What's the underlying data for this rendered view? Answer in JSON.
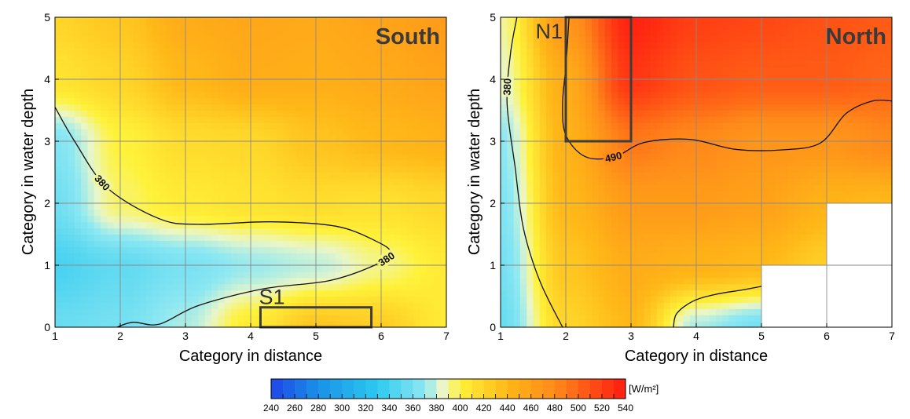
{
  "chart_data": [
    {
      "type": "heatmap",
      "region_label": "South",
      "xlabel": "Category in distance",
      "ylabel": "Category in water depth",
      "xlim": [
        1,
        7
      ],
      "ylim": [
        0,
        5
      ],
      "xticks": [
        1,
        2,
        3,
        4,
        5,
        6,
        7
      ],
      "yticks": [
        0,
        1,
        2,
        3,
        4,
        5
      ],
      "grid": true,
      "field": {
        "x": [
          1,
          2,
          3,
          4,
          5,
          6,
          7
        ],
        "y": [
          0,
          1,
          2,
          3,
          4,
          5
        ],
        "values": [
          [
            355,
            360,
            375,
            405,
            430,
            425,
            405
          ],
          [
            342,
            352,
            362,
            372,
            378,
            392,
            405
          ],
          [
            358,
            395,
            405,
            410,
            415,
            412,
            418
          ],
          [
            365,
            400,
            415,
            418,
            432,
            440,
            445
          ],
          [
            410,
            420,
            440,
            450,
            448,
            452,
            458
          ],
          [
            420,
            430,
            450,
            455,
            452,
            458,
            465
          ]
        ],
        "unit": "W/m²"
      },
      "contours": [
        {
          "label": "380",
          "points": [
            [
              1.0,
              3.55
            ],
            [
              1.3,
              3.0
            ],
            [
              1.8,
              2.25
            ],
            [
              2.6,
              1.75
            ],
            [
              3.2,
              1.66
            ],
            [
              4.3,
              1.7
            ],
            [
              5.3,
              1.63
            ],
            [
              5.9,
              1.4
            ],
            [
              6.15,
              1.2
            ],
            [
              5.9,
              1.0
            ],
            [
              5.2,
              0.75
            ],
            [
              4.2,
              0.62
            ],
            [
              3.2,
              0.35
            ],
            [
              2.6,
              0.05
            ],
            [
              2.2,
              0.08
            ],
            [
              1.95,
              0.0
            ]
          ]
        }
      ],
      "boxes": [
        {
          "label": "S1",
          "x0": 4.15,
          "x1": 5.85,
          "y0": 0.0,
          "y1": 0.32
        }
      ],
      "masked_cells": []
    },
    {
      "type": "heatmap",
      "region_label": "North",
      "xlabel": "Category in distance",
      "ylabel": "Category in water depth",
      "xlim": [
        1,
        7
      ],
      "ylim": [
        0,
        5
      ],
      "xticks": [
        1,
        2,
        3,
        4,
        5,
        6,
        7
      ],
      "yticks": [
        0,
        1,
        2,
        3,
        4,
        5
      ],
      "grid": true,
      "field": {
        "x": [
          1,
          2,
          3,
          4,
          5,
          6,
          7
        ],
        "y": [
          0,
          1,
          2,
          3,
          4,
          5
        ],
        "values": [
          [
            355,
            420,
            440,
            375,
            360,
            380,
            380
          ],
          [
            360,
            430,
            450,
            445,
            440,
            425,
            415
          ],
          [
            365,
            440,
            465,
            465,
            460,
            445,
            440
          ],
          [
            370,
            445,
            490,
            480,
            470,
            470,
            480
          ],
          [
            385,
            450,
            525,
            510,
            505,
            505,
            500
          ],
          [
            390,
            470,
            535,
            520,
            515,
            510,
            505
          ]
        ],
        "unit": "W/m²"
      },
      "contours": [
        {
          "label": "380",
          "points": [
            [
              1.25,
              5.0
            ],
            [
              1.15,
              4.4
            ],
            [
              1.1,
              3.6
            ],
            [
              1.22,
              2.6
            ],
            [
              1.35,
              1.6
            ],
            [
              1.6,
              0.75
            ],
            [
              1.95,
              0.0
            ]
          ]
        },
        {
          "label": "490",
          "points": [
            [
              2.05,
              5.0
            ],
            [
              2.0,
              4.2
            ],
            [
              1.95,
              3.6
            ],
            [
              2.0,
              3.1
            ],
            [
              2.3,
              2.75
            ],
            [
              2.75,
              2.75
            ],
            [
              3.2,
              2.98
            ],
            [
              3.9,
              3.03
            ],
            [
              4.6,
              2.87
            ],
            [
              5.3,
              2.86
            ],
            [
              5.9,
              2.97
            ],
            [
              6.3,
              3.45
            ],
            [
              6.7,
              3.65
            ],
            [
              7.0,
              3.65
            ]
          ]
        },
        {
          "label": "",
          "points": [
            [
              3.65,
              0.0
            ],
            [
              3.7,
              0.22
            ],
            [
              3.95,
              0.42
            ],
            [
              4.3,
              0.53
            ],
            [
              4.7,
              0.6
            ],
            [
              5.0,
              0.66
            ]
          ]
        }
      ],
      "boxes": [
        {
          "label": "N1",
          "x0": 2.0,
          "x1": 3.0,
          "y0": 3.0,
          "y1": 5.0
        }
      ],
      "masked_cells": [
        {
          "x0": 5,
          "x1": 7,
          "y0": 0,
          "y1": 1
        },
        {
          "x0": 6,
          "x1": 7,
          "y0": 1,
          "y1": 2
        }
      ]
    }
  ],
  "colorbar": {
    "min": 240,
    "max": 540,
    "ticks": [
      240,
      260,
      280,
      300,
      320,
      340,
      360,
      380,
      400,
      420,
      440,
      460,
      480,
      500,
      520,
      540
    ],
    "unit_label": "[W/m²]",
    "colors": [
      [
        240,
        "#1f46e6"
      ],
      [
        280,
        "#1a90e6"
      ],
      [
        330,
        "#2dc9f0"
      ],
      [
        370,
        "#8ee8f2"
      ],
      [
        385,
        "#eaf6c8"
      ],
      [
        400,
        "#fff23a"
      ],
      [
        440,
        "#ffb818"
      ],
      [
        480,
        "#ff8a1a"
      ],
      [
        540,
        "#ff1a10"
      ]
    ]
  }
}
